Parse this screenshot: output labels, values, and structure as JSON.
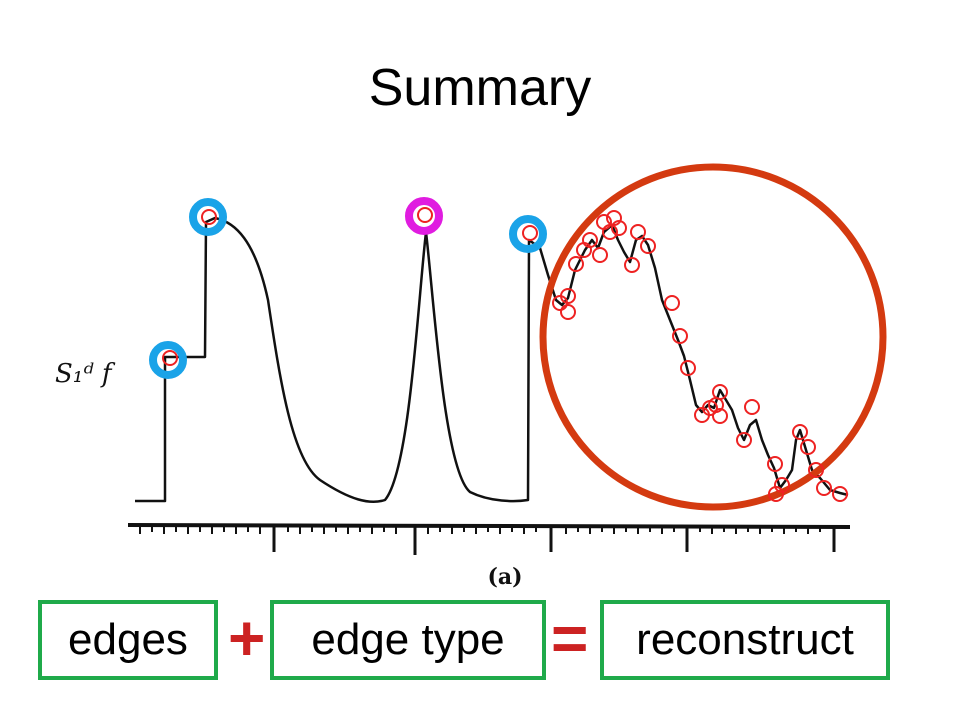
{
  "slide": {
    "title": "Summary"
  },
  "figure": {
    "signal_label": "S₁ᵈ f",
    "caption": "(a)"
  },
  "equation": {
    "term1": "edges",
    "plus": "+",
    "term2": "edge type",
    "equals": "=",
    "result": "reconstruct"
  },
  "colors": {
    "blue_marker": "#1aa3e8",
    "magenta_marker": "#e01ce0",
    "big_circle": "#d43a10",
    "small_marker": "#ee2222",
    "box_border": "#1faa4a",
    "operator": "#cc2222"
  }
}
